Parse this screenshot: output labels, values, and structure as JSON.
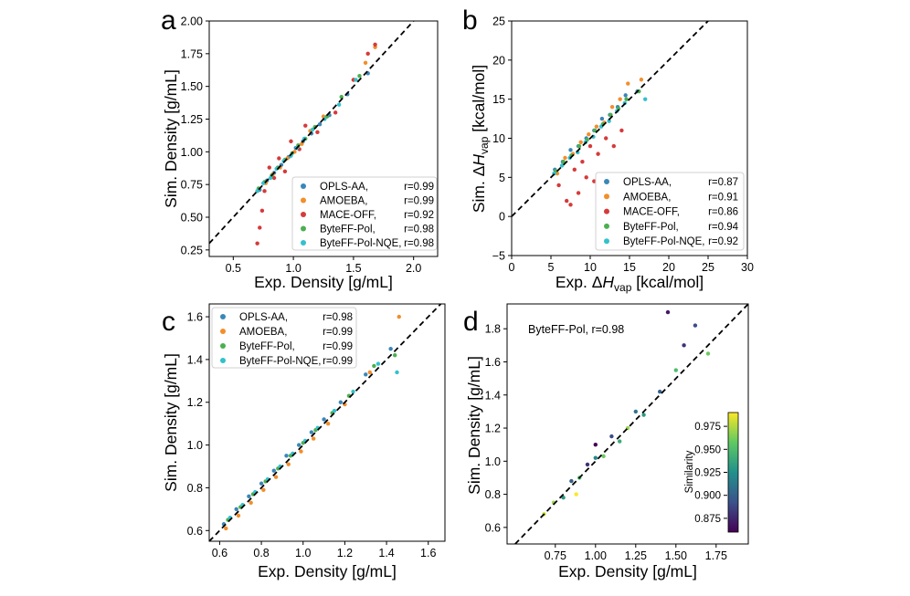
{
  "colors": {
    "OPLS-AA": "#3a87b8",
    "AMOEBA": "#f28e2b",
    "MACE-OFF": "#d63a3a",
    "ByteFF-Pol": "#4caf50",
    "ByteFF-Pol-NQE": "#33c1cc"
  },
  "chart_data": [
    {
      "panel": "a",
      "type": "scatter",
      "xlabel": "Exp. Density [g/mL]",
      "ylabel": "Sim. Density [g/mL]",
      "xlim": [
        0.3,
        2.2
      ],
      "ylim": [
        0.2,
        2.0
      ],
      "xticks": [
        "0.5",
        "1.0",
        "1.5",
        "2.0"
      ],
      "yticks": [
        "0.25",
        "0.50",
        "0.75",
        "1.00",
        "1.25",
        "1.50",
        "1.75",
        "2.00"
      ],
      "diagonal": true,
      "legend_position": "lower right",
      "series": [
        {
          "name": "OPLS-AA,",
          "r": "r=0.99",
          "x": [
            0.72,
            0.78,
            0.84,
            0.9,
            0.96,
            1.02,
            1.08,
            1.15,
            1.22,
            1.3,
            1.45,
            1.62
          ],
          "y": [
            0.71,
            0.78,
            0.84,
            0.9,
            0.96,
            1.03,
            1.08,
            1.14,
            1.21,
            1.28,
            1.44,
            1.6
          ]
        },
        {
          "name": "AMOEBA,",
          "r": "r=0.99",
          "x": [
            0.7,
            0.77,
            0.83,
            0.89,
            0.95,
            1.01,
            1.07,
            1.14,
            1.25,
            1.5,
            1.6,
            1.68
          ],
          "y": [
            0.7,
            0.76,
            0.83,
            0.88,
            0.95,
            1.0,
            1.06,
            1.16,
            1.27,
            1.55,
            1.68,
            1.8
          ]
        },
        {
          "name": "MACE-OFF,",
          "r": "r=0.92",
          "x": [
            0.7,
            0.72,
            0.74,
            0.76,
            0.8,
            0.84,
            0.88,
            0.93,
            0.98,
            1.05,
            1.1,
            1.2,
            1.35,
            1.5,
            1.62,
            1.68
          ],
          "y": [
            0.3,
            0.42,
            0.55,
            0.7,
            0.88,
            0.8,
            0.95,
            0.85,
            1.08,
            1.02,
            1.2,
            1.15,
            1.3,
            1.55,
            1.75,
            1.82
          ]
        },
        {
          "name": "ByteFF-Pol,",
          "r": "r=0.98",
          "x": [
            0.71,
            0.76,
            0.82,
            0.87,
            0.93,
            0.99,
            1.04,
            1.1,
            1.18,
            1.28,
            1.4,
            1.55
          ],
          "y": [
            0.72,
            0.77,
            0.82,
            0.88,
            0.94,
            0.99,
            1.05,
            1.1,
            1.19,
            1.27,
            1.42,
            1.58
          ]
        },
        {
          "name": "ByteFF-Pol-NQE,",
          "r": "r=0.98",
          "x": [
            0.7,
            0.75,
            0.81,
            0.86,
            0.92,
            0.98,
            1.03,
            1.09,
            1.16,
            1.26,
            1.38,
            1.52
          ],
          "y": [
            0.7,
            0.76,
            0.8,
            0.87,
            0.93,
            0.97,
            1.03,
            1.1,
            1.17,
            1.25,
            1.36,
            1.55
          ]
        }
      ]
    },
    {
      "panel": "b",
      "type": "scatter",
      "xlabel": "Exp. ΔH_vap [kcal/mol]",
      "ylabel": "Sim. ΔH_vap [kcal/mol]",
      "xlim": [
        0,
        30
      ],
      "ylim": [
        -5,
        25
      ],
      "xticks": [
        "0",
        "5",
        "10",
        "15",
        "20",
        "25",
        "30"
      ],
      "yticks": [
        "−5",
        "0",
        "5",
        "10",
        "15",
        "20",
        "25"
      ],
      "diagonal": true,
      "legend_position": "lower right",
      "series": [
        {
          "name": "OPLS-AA,",
          "r": "r=0.87",
          "x": [
            5.5,
            6.5,
            7.5,
            8.5,
            9.5,
            10.5,
            11.5,
            12.5,
            13.5,
            14.5,
            16
          ],
          "y": [
            6,
            7,
            8.5,
            9,
            10,
            11,
            12.5,
            13,
            14,
            15.5,
            16
          ]
        },
        {
          "name": "AMOEBA,",
          "r": "r=0.91",
          "x": [
            5.8,
            6.8,
            7.8,
            8.8,
            9.8,
            10.8,
            11.8,
            12.8,
            13.8,
            14.8,
            16.5
          ],
          "y": [
            5.5,
            7.5,
            8,
            9.5,
            10.5,
            11.5,
            12,
            14,
            15,
            17,
            17.5
          ]
        },
        {
          "name": "MACE-OFF,",
          "r": "r=0.86",
          "x": [
            6,
            7,
            7.5,
            8,
            8.5,
            9,
            9.5,
            10,
            10.5,
            11,
            12,
            13,
            14
          ],
          "y": [
            4,
            2,
            1.5,
            6,
            3,
            7,
            5,
            9,
            4.5,
            8,
            10,
            9,
            11
          ]
        },
        {
          "name": "ByteFF-Pol,",
          "r": "r=0.94",
          "x": [
            5.6,
            6.6,
            7.6,
            8.6,
            9.6,
            10.6,
            11.6,
            12.6,
            13.6,
            14.6,
            16.2
          ],
          "y": [
            5.8,
            7,
            7.8,
            9,
            9.8,
            11,
            11.8,
            13,
            13.8,
            15,
            16
          ]
        },
        {
          "name": "ByteFF-Pol-NQE,",
          "r": "r=0.92",
          "x": [
            5.4,
            6.4,
            7.4,
            8.4,
            9.4,
            10.4,
            11.4,
            12.4,
            13.4,
            14.4,
            17
          ],
          "y": [
            5.5,
            6.5,
            7.5,
            8.2,
            9.5,
            10.2,
            11.5,
            12.2,
            13.5,
            14.5,
            15
          ]
        }
      ]
    },
    {
      "panel": "c",
      "type": "scatter",
      "xlabel": "Exp. Density [g/mL]",
      "ylabel": "Sim. Density [g/mL]",
      "xlim": [
        0.55,
        1.68
      ],
      "ylim": [
        0.55,
        1.66
      ],
      "xticks": [
        "0.6",
        "0.8",
        "1.0",
        "1.2",
        "1.4",
        "1.6"
      ],
      "yticks": [
        "0.6",
        "0.8",
        "1.0",
        "1.2",
        "1.4",
        "1.6"
      ],
      "diagonal": true,
      "legend_position": "upper left",
      "series": [
        {
          "name": "OPLS-AA,",
          "r": "r=0.98",
          "x": [
            0.62,
            0.68,
            0.74,
            0.8,
            0.86,
            0.92,
            0.98,
            1.04,
            1.1,
            1.18,
            1.3,
            1.42
          ],
          "y": [
            0.63,
            0.7,
            0.76,
            0.82,
            0.88,
            0.95,
            1.0,
            1.06,
            1.12,
            1.2,
            1.33,
            1.45
          ]
        },
        {
          "name": "AMOEBA,",
          "r": "r=0.99",
          "x": [
            0.63,
            0.69,
            0.75,
            0.81,
            0.87,
            0.93,
            0.99,
            1.05,
            1.12,
            1.2,
            1.32,
            1.46
          ],
          "y": [
            0.61,
            0.67,
            0.73,
            0.79,
            0.85,
            0.91,
            0.97,
            1.03,
            1.1,
            1.19,
            1.34,
            1.6
          ]
        },
        {
          "name": "ByteFF-Pol,",
          "r": "r=0.99",
          "x": [
            0.64,
            0.7,
            0.76,
            0.82,
            0.88,
            0.94,
            1.0,
            1.06,
            1.14,
            1.22,
            1.34,
            1.44
          ],
          "y": [
            0.65,
            0.71,
            0.77,
            0.83,
            0.89,
            0.95,
            1.01,
            1.07,
            1.15,
            1.23,
            1.37,
            1.42
          ]
        },
        {
          "name": "ByteFF-Pol-NQE,",
          "r": "r=0.99",
          "x": [
            0.65,
            0.71,
            0.77,
            0.83,
            0.89,
            0.95,
            1.01,
            1.07,
            1.15,
            1.24,
            1.36,
            1.45
          ],
          "y": [
            0.66,
            0.72,
            0.78,
            0.84,
            0.9,
            0.96,
            1.02,
            1.08,
            1.16,
            1.25,
            1.38,
            1.34
          ]
        }
      ]
    },
    {
      "panel": "d",
      "type": "scatter",
      "xlabel": "Exp. Density [g/mL]",
      "ylabel": "Sim. Density [g/mL]",
      "xlim": [
        0.45,
        1.95
      ],
      "ylim": [
        0.5,
        1.95
      ],
      "xticks": [
        "0.75",
        "1.00",
        "1.25",
        "1.50",
        "1.75"
      ],
      "yticks": [
        "0.6",
        "0.8",
        "1.0",
        "1.2",
        "1.4",
        "1.6",
        "1.8"
      ],
      "diagonal": true,
      "annotation": "ByteFF-Pol, r=0.98",
      "colorbar": {
        "label": "Similarity",
        "range": [
          0.86,
          0.99
        ],
        "ticks": [
          "0.875",
          "0.900",
          "0.925",
          "0.950",
          "0.975"
        ]
      },
      "points": [
        {
          "x": 0.68,
          "y": 0.68,
          "s": 0.98
        },
        {
          "x": 0.74,
          "y": 0.75,
          "s": 0.97
        },
        {
          "x": 0.8,
          "y": 0.78,
          "s": 0.93
        },
        {
          "x": 0.85,
          "y": 0.88,
          "s": 0.9
        },
        {
          "x": 0.9,
          "y": 0.9,
          "s": 0.95
        },
        {
          "x": 0.95,
          "y": 0.98,
          "s": 0.88
        },
        {
          "x": 1.0,
          "y": 1.02,
          "s": 0.92
        },
        {
          "x": 1.05,
          "y": 1.03,
          "s": 0.96
        },
        {
          "x": 1.1,
          "y": 1.15,
          "s": 0.89
        },
        {
          "x": 1.15,
          "y": 1.12,
          "s": 0.94
        },
        {
          "x": 1.2,
          "y": 1.2,
          "s": 0.97
        },
        {
          "x": 1.25,
          "y": 1.3,
          "s": 0.91
        },
        {
          "x": 1.3,
          "y": 1.28,
          "s": 0.93
        },
        {
          "x": 1.4,
          "y": 1.42,
          "s": 0.9
        },
        {
          "x": 1.5,
          "y": 1.55,
          "s": 0.95
        },
        {
          "x": 1.55,
          "y": 1.7,
          "s": 0.88
        },
        {
          "x": 1.45,
          "y": 1.9,
          "s": 0.87
        },
        {
          "x": 1.7,
          "y": 1.65,
          "s": 0.96
        },
        {
          "x": 1.62,
          "y": 1.82,
          "s": 0.89
        },
        {
          "x": 0.88,
          "y": 0.8,
          "s": 0.99
        },
        {
          "x": 1.0,
          "y": 1.1,
          "s": 0.86
        }
      ]
    }
  ]
}
